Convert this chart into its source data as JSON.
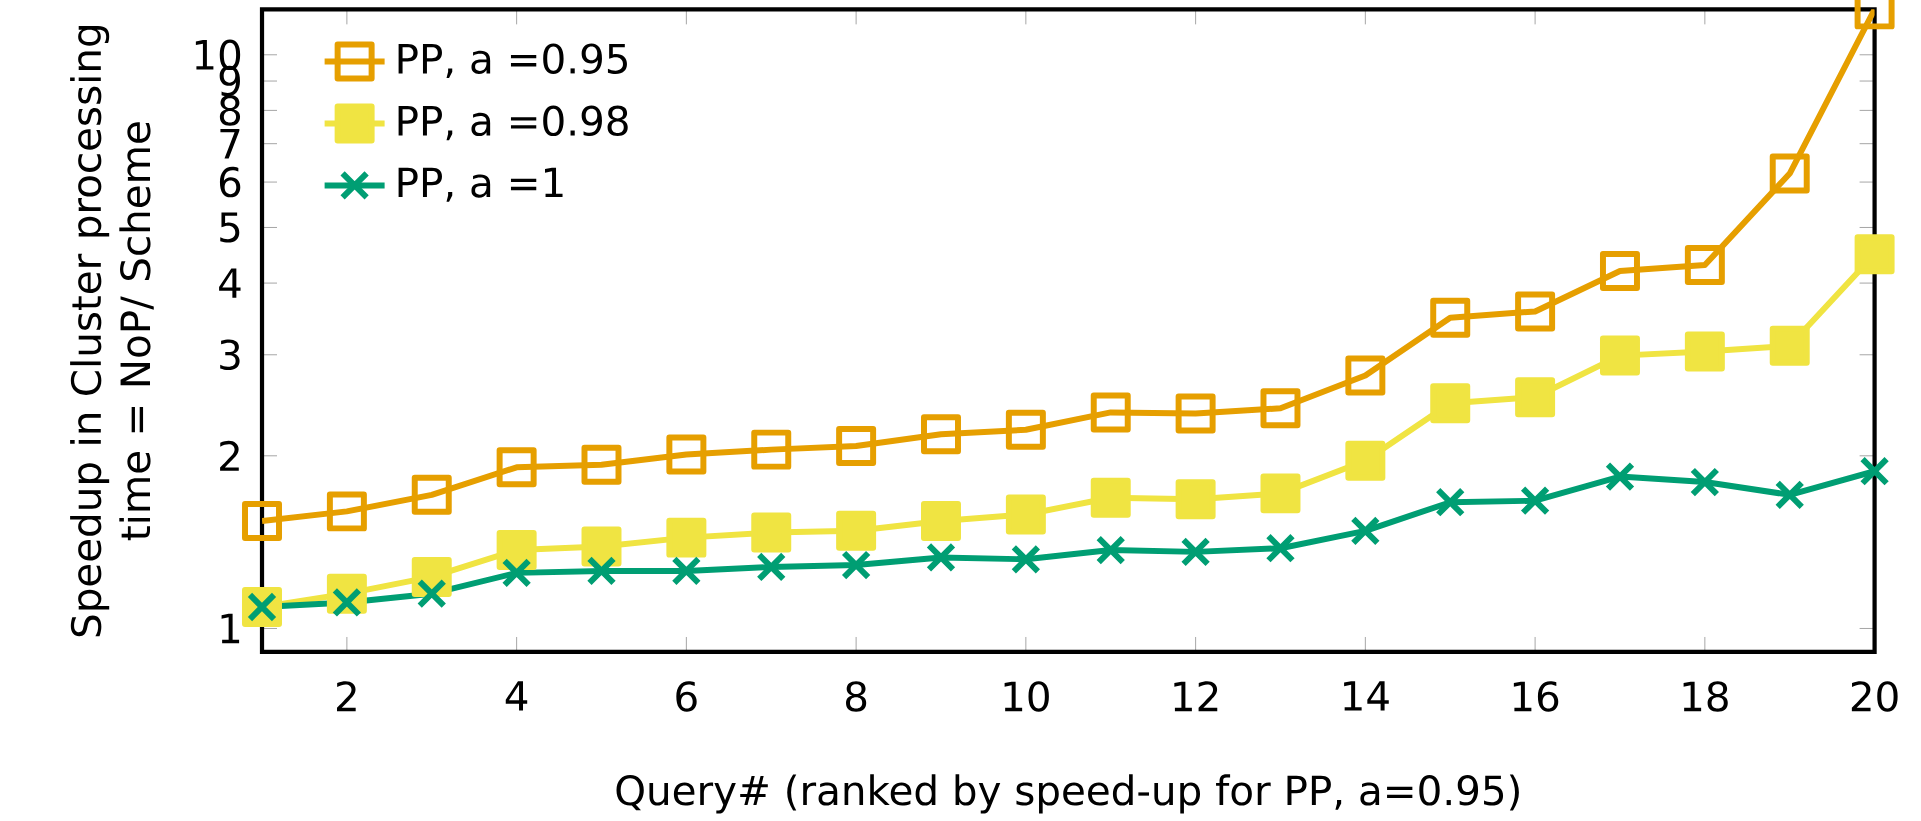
{
  "chart_data": {
    "type": "line",
    "xlabel": "Query# (ranked by speed-up for PP, a=0.95)",
    "ylabel": "Speedup in Cluster processing time = NoP/ Scheme",
    "x": [
      1,
      2,
      3,
      4,
      5,
      6,
      7,
      8,
      9,
      10,
      11,
      12,
      13,
      14,
      15,
      16,
      17,
      18,
      19,
      20
    ],
    "series": [
      {
        "name": "PP, a =0.95",
        "color": "#e69f00",
        "marker": "square",
        "values": [
          1.54,
          1.6,
          1.71,
          1.91,
          1.93,
          2.01,
          2.05,
          2.08,
          2.18,
          2.22,
          2.38,
          2.37,
          2.42,
          2.76,
          3.48,
          3.57,
          4.2,
          4.3,
          6.21,
          12
        ]
      },
      {
        "name": "PP, a =0.98",
        "color": "#f0e442",
        "marker": "square",
        "values": [
          1.09,
          1.15,
          1.23,
          1.37,
          1.39,
          1.44,
          1.47,
          1.48,
          1.54,
          1.58,
          1.69,
          1.68,
          1.72,
          1.96,
          2.47,
          2.53,
          2.99,
          3.04,
          3.11,
          4.49
        ]
      },
      {
        "name": "PP, a =1",
        "color": "#009e73",
        "marker": "cross",
        "values": [
          1.09,
          1.11,
          1.15,
          1.25,
          1.26,
          1.26,
          1.28,
          1.29,
          1.33,
          1.32,
          1.37,
          1.36,
          1.38,
          1.48,
          1.66,
          1.67,
          1.84,
          1.8,
          1.71,
          1.88
        ]
      }
    ],
    "log": "y",
    "xlim": [
      1,
      20
    ],
    "ylim": [
      0.91,
      12
    ],
    "xticks": [
      2,
      4,
      6,
      8,
      10,
      12,
      14,
      16,
      18,
      20
    ],
    "yticks": [
      1,
      2,
      3,
      4,
      5,
      6,
      7,
      8,
      9,
      10
    ],
    "grid": false,
    "legend": "top left",
    "line_style": "solid"
  }
}
